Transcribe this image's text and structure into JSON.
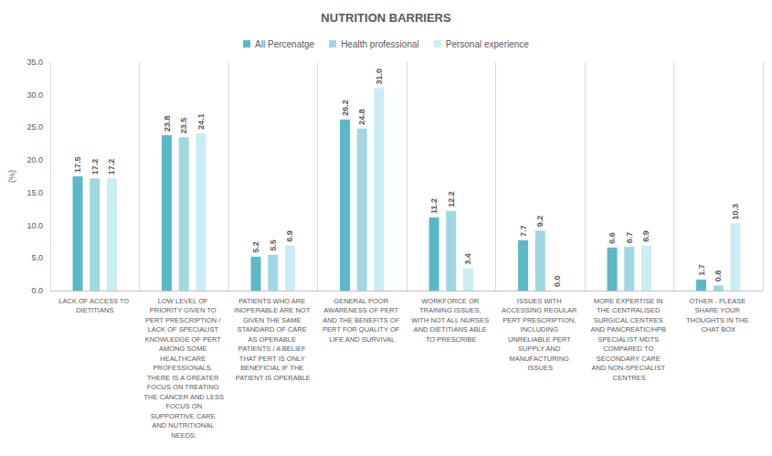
{
  "chart_data": {
    "type": "bar",
    "title": "NUTRITION BARRIERS",
    "y_label": "(%)",
    "categories": [
      "LACK OF ACCESS TO DIETITIANS",
      "LOW LEVEL OF PRIORITY GIVEN TO PERT PRESCRIPTION / LACK OF SPECIALIST KNOWLEDGE OF PERT AMONG SOME HEALTHCARE PROFESSIONALS. THERE IS A GREATER FOCUS ON TREATING THE CANCER AND LESS FOCUS ON SUPPORTIVE CARE AND NUTRITIONAL NEEDS.",
      "PATIENTS WHO ARE INOPERABLE ARE NOT GIVEN THE SAME STANDARD OF CARE AS OPERABLE PATIENTS / A BELIEF THAT PERT IS ONLY BENEFICIAL IF THE PATIENT IS OPERABLE",
      "GENERAL POOR AWARENESS OF PERT AND THE BENEFITS OF PERT FOR QUALITY OF LIFE AND SURVIVAL",
      "WORKFORCE OR TRAINING ISSUES, WITH NOT ALL NURSES AND DIETITIANS ABLE TO PRESCRIBE",
      "ISSUES WITH ACCESSING REGULAR PERT PRESCRIPTION, INCLUDING UNRELIABLE PERT SUPPLY AND MANUFACTURING ISSUES",
      "MORE EXPERTISE IN THE CENTRALISED SURGICAL CENTRES AND PANCREATIC/HPB SPECIALIST MDTS COMPARED TO SECONDARY CARE AND NON-SPECIALIST CENTRES",
      "OTHER - PLEASE SHARE YOUR THOUGHTS IN THE CHAT BOX"
    ],
    "series": [
      {
        "name": "All Percenatge",
        "color": "#5bb8c8",
        "values": [
          17.5,
          23.8,
          5.2,
          26.2,
          11.2,
          7.7,
          6.6,
          1.7
        ],
        "value_labels": [
          "17.5",
          "23.8",
          "5.2",
          "26.2",
          "11.2",
          "7.7",
          "6.6",
          "1.7"
        ]
      },
      {
        "name": "Health professional",
        "color": "#9fd8e1",
        "values": [
          17.2,
          23.5,
          5.5,
          24.8,
          12.2,
          9.2,
          6.7,
          0.8
        ],
        "value_labels": [
          "17.2",
          "23.5",
          "5.5",
          "24.8",
          "12.2",
          "9.2",
          "6.7",
          "0.8"
        ]
      },
      {
        "name": "Personal experience",
        "color": "#c9edf2",
        "values": [
          17.2,
          24.1,
          6.9,
          31.0,
          3.4,
          0.0,
          6.9,
          10.3
        ],
        "value_labels": [
          "17.2",
          "24.1",
          "6.9",
          "31.0",
          "3.4",
          "0.0",
          "6.9",
          "10.3"
        ]
      }
    ],
    "ylim": [
      0,
      35
    ],
    "yticks": [
      {
        "value": 0,
        "label": "0.0"
      },
      {
        "value": 5,
        "label": "5.0"
      },
      {
        "value": 10,
        "label": "10.0"
      },
      {
        "value": 15,
        "label": "15.0"
      },
      {
        "value": 20,
        "label": "20.0"
      },
      {
        "value": 25,
        "label": "25.0"
      },
      {
        "value": 30,
        "label": "30.0"
      },
      {
        "value": 35,
        "label": "35.0"
      }
    ],
    "grid": false,
    "legend": "top",
    "data_labels": true
  }
}
